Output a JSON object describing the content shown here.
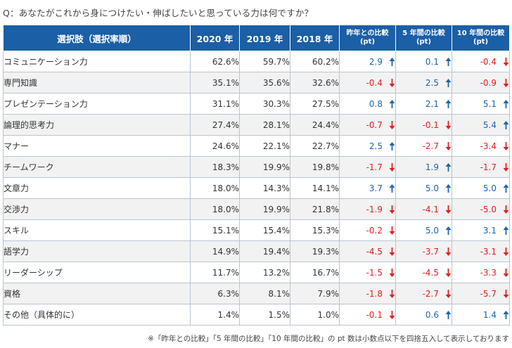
{
  "question": "Q：あなたがこれから身につけたい・伸ばしたいと思っている力は何ですか？",
  "table": {
    "headers": {
      "option": "選択肢（選択率順）",
      "years": [
        "2020 年",
        "2019 年",
        "2018 年"
      ],
      "comparisons": [
        {
          "line1": "昨年との比較",
          "line2": "(pt)"
        },
        {
          "line1": "5 年間の比較",
          "line2": "(pt)"
        },
        {
          "line1": "10 年間の比較",
          "line2": "(pt)"
        }
      ]
    },
    "rows": [
      {
        "label": "コミュニケーション力",
        "y2020": "62.6%",
        "y2019": "59.7%",
        "y2018": "60.2%",
        "diffs": [
          {
            "value": "2.9",
            "dir": "up"
          },
          {
            "value": "0.1",
            "dir": "up"
          },
          {
            "value": "-0.4",
            "dir": "down"
          }
        ]
      },
      {
        "label": "専門知識",
        "y2020": "35.1%",
        "y2019": "35.6%",
        "y2018": "32.6%",
        "diffs": [
          {
            "value": "-0.4",
            "dir": "down"
          },
          {
            "value": "2.5",
            "dir": "up"
          },
          {
            "value": "-0.9",
            "dir": "down"
          }
        ]
      },
      {
        "label": "プレゼンテーション力",
        "y2020": "31.1%",
        "y2019": "30.3%",
        "y2018": "27.5%",
        "diffs": [
          {
            "value": "0.8",
            "dir": "up"
          },
          {
            "value": "2.1",
            "dir": "up"
          },
          {
            "value": "5.1",
            "dir": "up"
          }
        ]
      },
      {
        "label": "論理的思考力",
        "y2020": "27.4%",
        "y2019": "28.1%",
        "y2018": "24.4%",
        "diffs": [
          {
            "value": "-0.7",
            "dir": "down"
          },
          {
            "value": "-0.1",
            "dir": "down"
          },
          {
            "value": "5.4",
            "dir": "up"
          }
        ]
      },
      {
        "label": "マナー",
        "y2020": "24.6%",
        "y2019": "22.1%",
        "y2018": "22.7%",
        "diffs": [
          {
            "value": "2.5",
            "dir": "up"
          },
          {
            "value": "-2.7",
            "dir": "down"
          },
          {
            "value": "-3.4",
            "dir": "down"
          }
        ]
      },
      {
        "label": "チームワーク",
        "y2020": "18.3%",
        "y2019": "19.9%",
        "y2018": "19.8%",
        "diffs": [
          {
            "value": "-1.7",
            "dir": "down"
          },
          {
            "value": "1.9",
            "dir": "up"
          },
          {
            "value": "-1.7",
            "dir": "down"
          }
        ]
      },
      {
        "label": "文章力",
        "y2020": "18.0%",
        "y2019": "14.3%",
        "y2018": "14.1%",
        "diffs": [
          {
            "value": "3.7",
            "dir": "up"
          },
          {
            "value": "5.0",
            "dir": "up"
          },
          {
            "value": "5.0",
            "dir": "up"
          }
        ]
      },
      {
        "label": "交渉力",
        "y2020": "18.0%",
        "y2019": "19.9%",
        "y2018": "21.8%",
        "diffs": [
          {
            "value": "-1.9",
            "dir": "down"
          },
          {
            "value": "-4.1",
            "dir": "down"
          },
          {
            "value": "-5.0",
            "dir": "down"
          }
        ]
      },
      {
        "label": "スキル",
        "y2020": "15.1%",
        "y2019": "15.4%",
        "y2018": "15.3%",
        "diffs": [
          {
            "value": "-0.2",
            "dir": "down"
          },
          {
            "value": "5.0",
            "dir": "up"
          },
          {
            "value": "3.1",
            "dir": "up"
          }
        ]
      },
      {
        "label": "語学力",
        "y2020": "14.9%",
        "y2019": "19.4%",
        "y2018": "19.3%",
        "diffs": [
          {
            "value": "-4.5",
            "dir": "down"
          },
          {
            "value": "-3.7",
            "dir": "down"
          },
          {
            "value": "-3.1",
            "dir": "down"
          }
        ]
      },
      {
        "label": "リーダーシップ",
        "y2020": "11.7%",
        "y2019": "13.2%",
        "y2018": "16.7%",
        "diffs": [
          {
            "value": "-1.5",
            "dir": "down"
          },
          {
            "value": "-4.5",
            "dir": "down"
          },
          {
            "value": "-3.3",
            "dir": "down"
          }
        ]
      },
      {
        "label": "資格",
        "y2020": "6.3%",
        "y2019": "8.1%",
        "y2018": "7.9%",
        "diffs": [
          {
            "value": "-1.8",
            "dir": "down"
          },
          {
            "value": "-2.7",
            "dir": "down"
          },
          {
            "value": "-5.7",
            "dir": "down"
          }
        ]
      },
      {
        "label": "その他（具体的に）",
        "y2020": "1.4%",
        "y2019": "1.5%",
        "y2018": "1.0%",
        "diffs": [
          {
            "value": "-0.1",
            "dir": "down"
          },
          {
            "value": "0.6",
            "dir": "up"
          },
          {
            "value": "1.4",
            "dir": "up"
          }
        ]
      }
    ]
  },
  "footnote": "※「昨年との比較」「5 年間の比較」「10 年間の比較」の pt 数は小数点以下を四捨五入して表示しております",
  "colors": {
    "header_bg": "#1b5fa6",
    "up": "#1e63ad",
    "down": "#e02020",
    "zebra": "#f2f2f2"
  },
  "icons": {
    "up": "arrow-up-icon",
    "down": "arrow-down-icon"
  }
}
